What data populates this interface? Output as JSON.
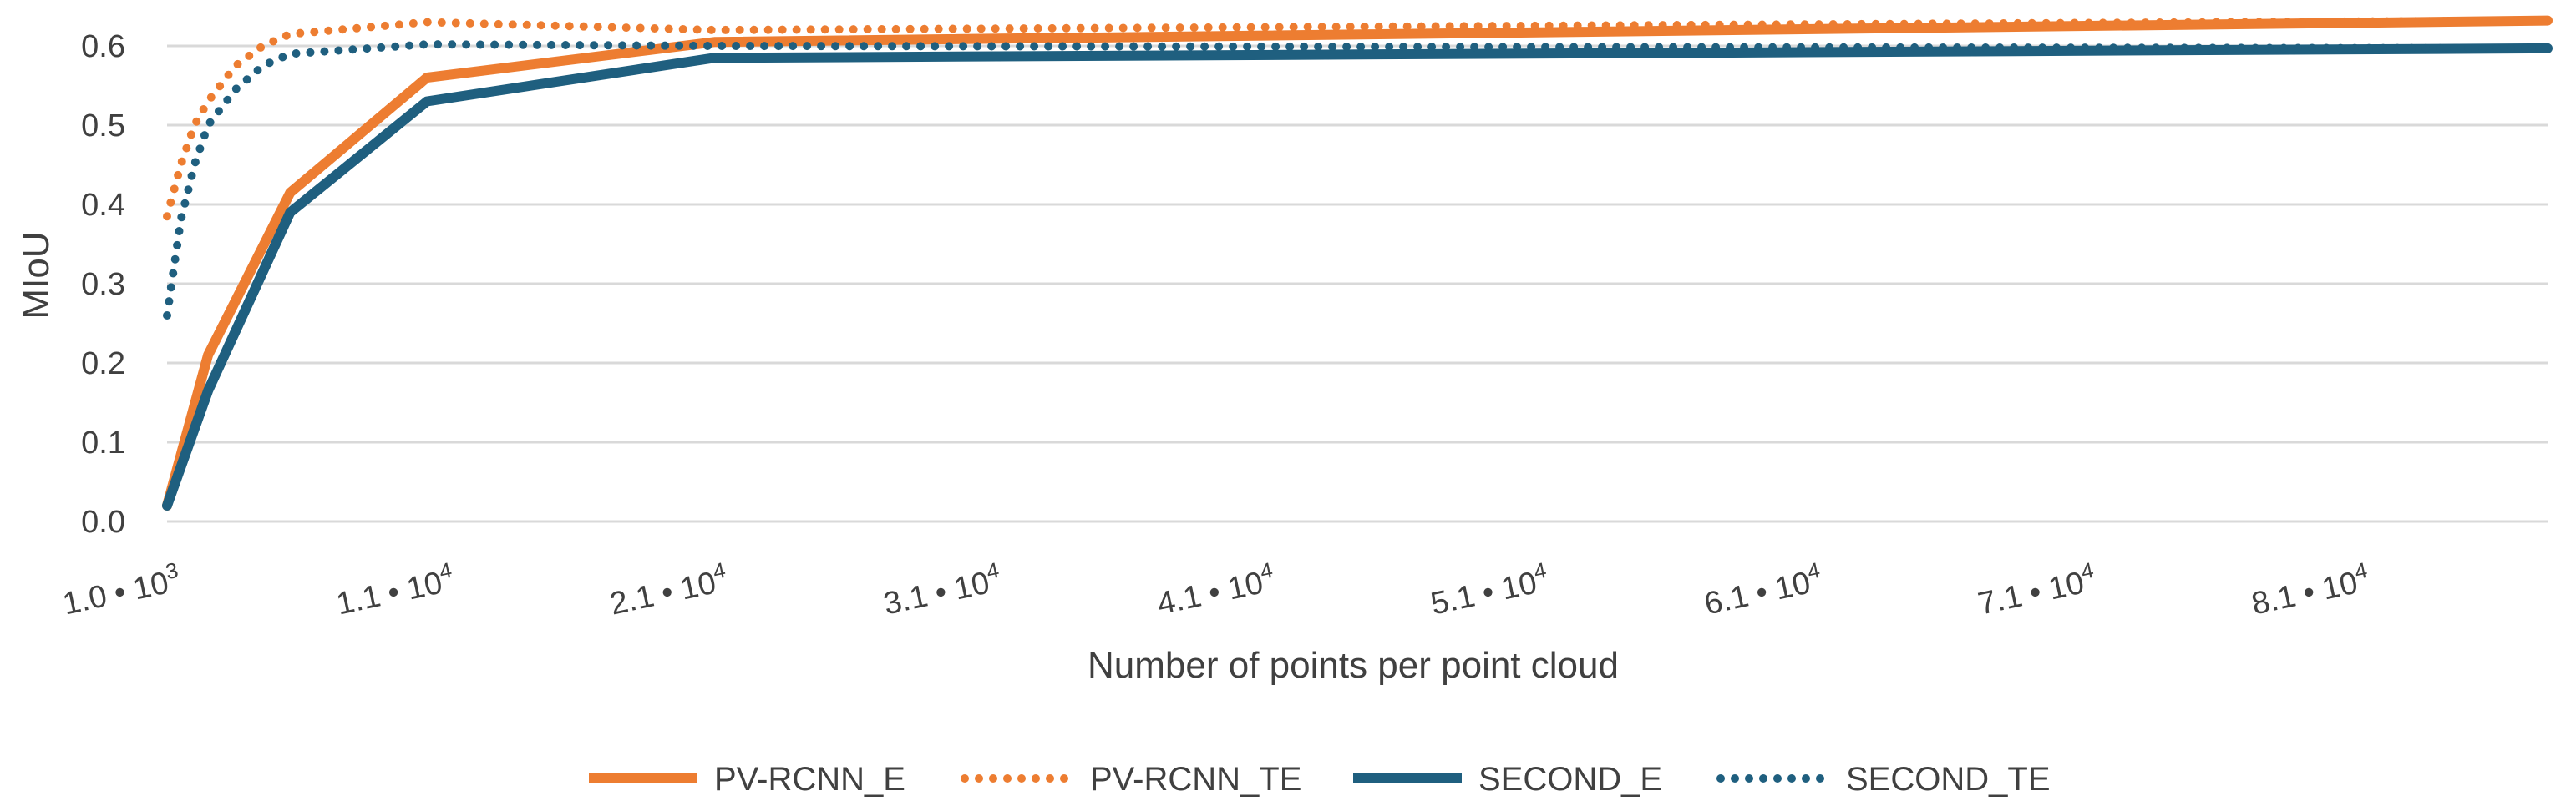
{
  "chart_data": {
    "type": "line",
    "xlabel": "Number of points per point cloud",
    "ylabel": "MIoU",
    "xlim": [
      1000,
      88000
    ],
    "ylim": [
      0,
      0.6
    ],
    "yticks": [
      0.0,
      0.1,
      0.2,
      0.3,
      0.4,
      0.5,
      0.6
    ],
    "xticks": [
      {
        "value": 1000,
        "mantissa": "1.0",
        "exponent": "3"
      },
      {
        "value": 11000,
        "mantissa": "1.1",
        "exponent": "4"
      },
      {
        "value": 21000,
        "mantissa": "2.1",
        "exponent": "4"
      },
      {
        "value": 31000,
        "mantissa": "3.1",
        "exponent": "4"
      },
      {
        "value": 41000,
        "mantissa": "4.1",
        "exponent": "4"
      },
      {
        "value": 51000,
        "mantissa": "5.1",
        "exponent": "4"
      },
      {
        "value": 61000,
        "mantissa": "6.1",
        "exponent": "4"
      },
      {
        "value": 71000,
        "mantissa": "7.1",
        "exponent": "4"
      },
      {
        "value": 81000,
        "mantissa": "8.1",
        "exponent": "4"
      }
    ],
    "grid": true,
    "legend_position": "bottom",
    "series": [
      {
        "name": "PV-RCNN_E",
        "color": "#ED7D31",
        "style": "solid",
        "x": [
          1000,
          2500,
          5500,
          10500,
          21000,
          88000
        ],
        "y": [
          0.02,
          0.21,
          0.415,
          0.56,
          0.605,
          0.632
        ]
      },
      {
        "name": "PV-RCNN_TE",
        "color": "#ED7D31",
        "style": "dotted",
        "x": [
          1000,
          1500,
          2000,
          2500,
          3500,
          4500,
          5500,
          10500,
          21000,
          88000
        ],
        "y": [
          0.385,
          0.45,
          0.5,
          0.53,
          0.575,
          0.6,
          0.615,
          0.63,
          0.62,
          0.632
        ]
      },
      {
        "name": "SECOND_E",
        "color": "#1F5F7F",
        "style": "solid",
        "x": [
          1000,
          2500,
          5500,
          10500,
          21000,
          88000
        ],
        "y": [
          0.02,
          0.165,
          0.39,
          0.53,
          0.585,
          0.597
        ]
      },
      {
        "name": "SECOND_TE",
        "color": "#1F5F7F",
        "style": "dotted",
        "x": [
          1000,
          1500,
          2000,
          2500,
          3500,
          4500,
          5500,
          10500,
          21000,
          88000
        ],
        "y": [
          0.26,
          0.38,
          0.45,
          0.5,
          0.545,
          0.575,
          0.59,
          0.602,
          0.6,
          0.597
        ]
      }
    ]
  }
}
